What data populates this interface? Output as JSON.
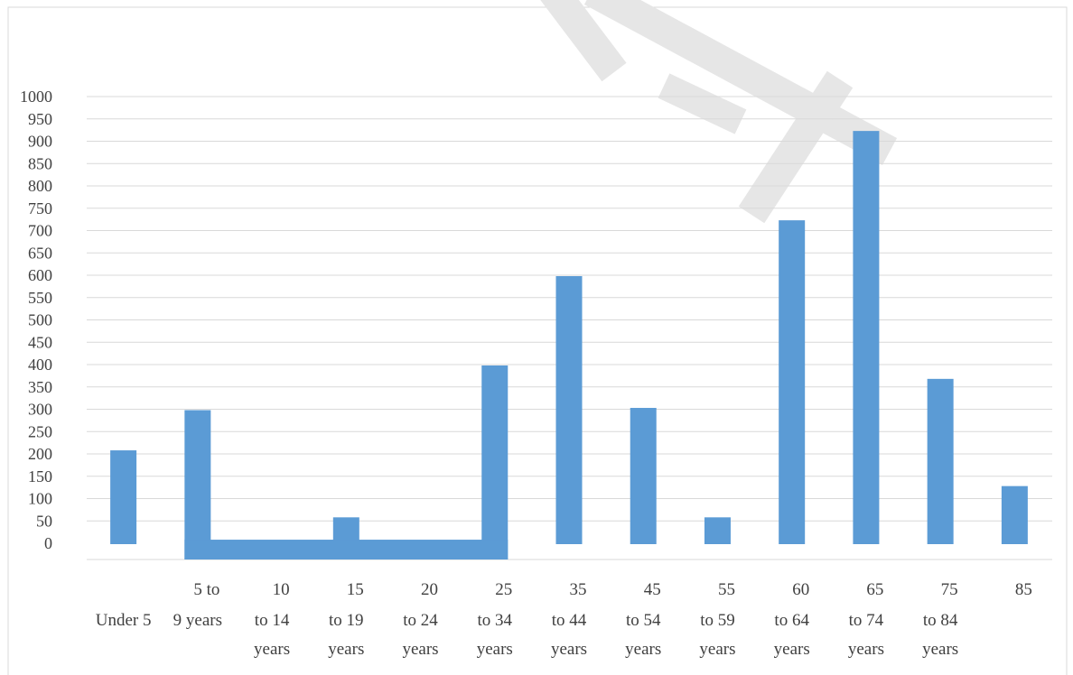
{
  "chart_data": {
    "type": "bar",
    "categories": [
      "Under 5",
      "5 to 9 years",
      "10 to 14 years",
      "15 to 19 years",
      "20 to 24 years",
      "25 to 34 years",
      "35 to 44 years",
      "45 to 54 years",
      "55 to 59 years",
      "60 to 64 years",
      "65 to 74 years",
      "75 to 84 years",
      "85"
    ],
    "category_label_lines": [
      [
        "",
        "Under 5",
        ""
      ],
      [
        "5 to",
        "9 years",
        ""
      ],
      [
        "10",
        "to 14",
        "years"
      ],
      [
        "15",
        "to 19",
        "years"
      ],
      [
        "20",
        "to 24",
        "years"
      ],
      [
        "25",
        "to 34",
        "years"
      ],
      [
        "35",
        "to 44",
        "years"
      ],
      [
        "45",
        "to 54",
        "years"
      ],
      [
        "55",
        "to 59",
        "years"
      ],
      [
        "60",
        "to 64",
        "years"
      ],
      [
        "65",
        "to 74",
        "years"
      ],
      [
        "75",
        "to 84",
        "years"
      ],
      [
        "85",
        "",
        ""
      ]
    ],
    "values": [
      210,
      300,
      0,
      60,
      0,
      400,
      600,
      305,
      60,
      725,
      925,
      370,
      130
    ],
    "connector_values": [
      10,
      10,
      10,
      10,
      10,
      10
    ],
    "y_ticks": [
      0,
      50,
      100,
      150,
      200,
      250,
      300,
      350,
      400,
      450,
      500,
      550,
      600,
      650,
      700,
      750,
      800,
      850,
      900,
      950,
      1000
    ],
    "ylim": [
      0,
      1000
    ],
    "grid": true,
    "legend": "none",
    "bar_color": "#5b9bd5",
    "grid_color": "#d9d9d9",
    "watermark_color": "#e6e6e6"
  }
}
